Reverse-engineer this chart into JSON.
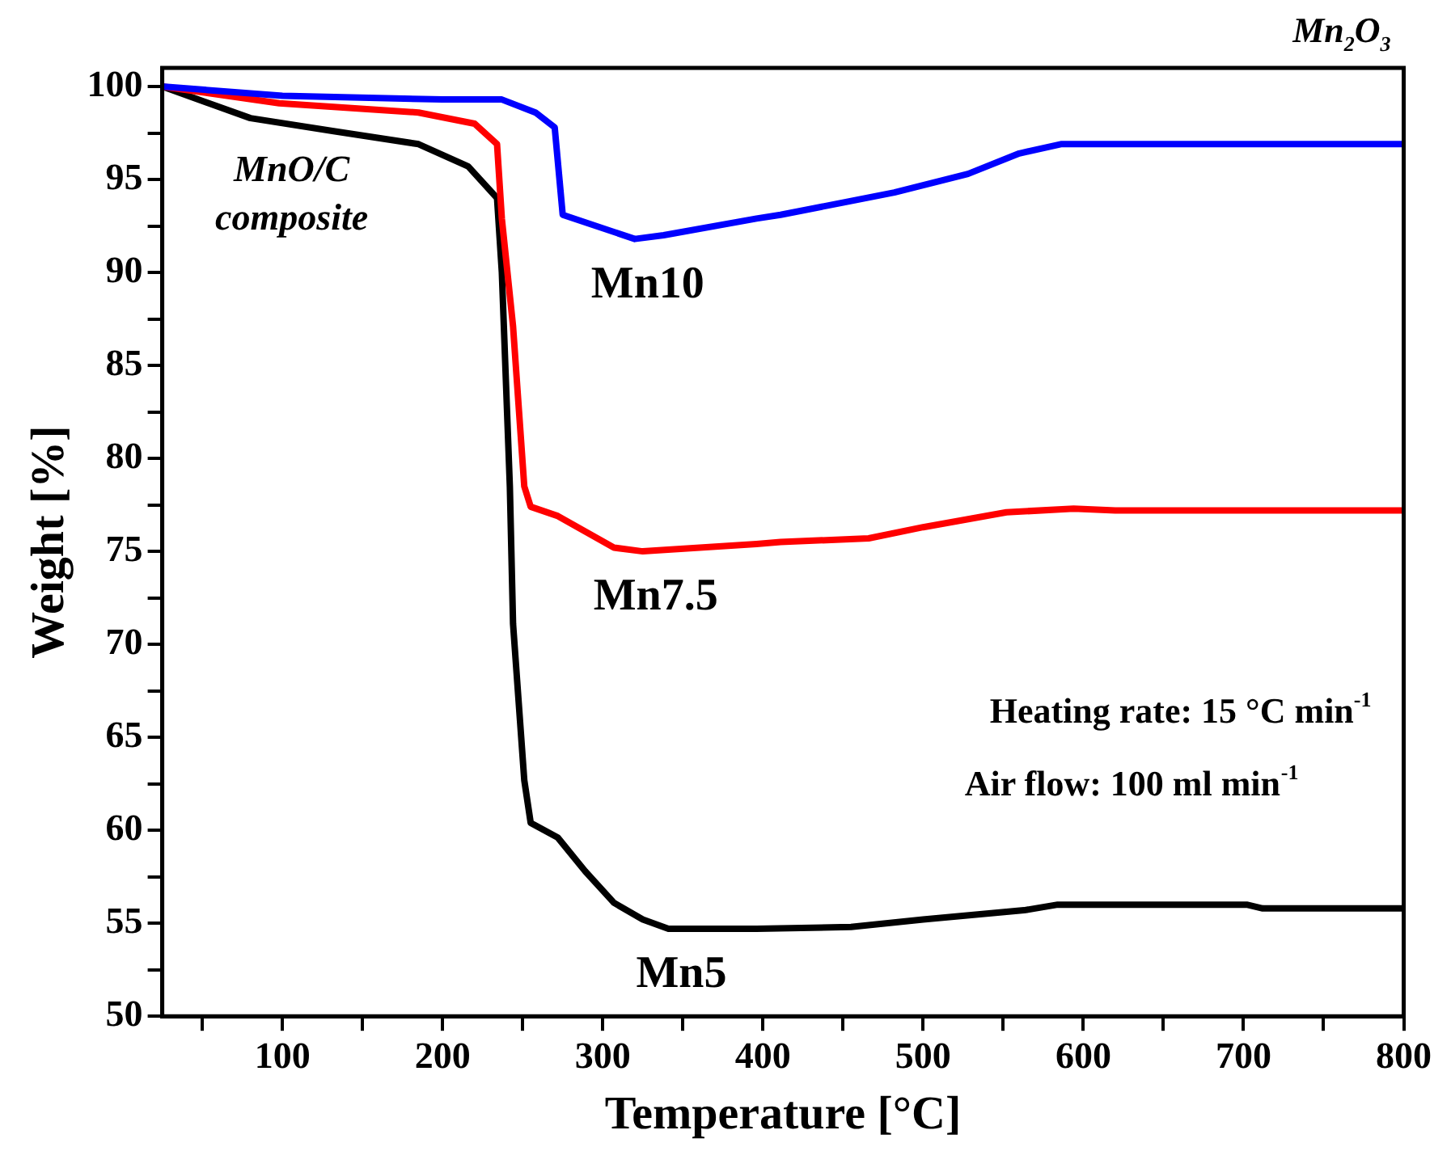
{
  "chart_data": {
    "type": "line",
    "xlabel": "Temperature [°C]",
    "ylabel": "Weight [%]",
    "xlim": [
      25,
      800
    ],
    "ylim": [
      50,
      101
    ],
    "xticks": [
      {
        "value": 50,
        "label": null
      },
      100,
      {
        "value": 150,
        "label": null
      },
      200,
      {
        "value": 250,
        "label": null
      },
      300,
      {
        "value": 350,
        "label": null
      },
      400,
      {
        "value": 450,
        "label": null
      },
      500,
      {
        "value": 550,
        "label": null
      },
      600,
      {
        "value": 650,
        "label": null
      },
      700,
      {
        "value": 750,
        "label": null
      },
      800
    ],
    "yticks": [
      50,
      {
        "value": 52.5,
        "label": null
      },
      55,
      {
        "value": 57.5,
        "label": null
      },
      60,
      {
        "value": 62.5,
        "label": null
      },
      65,
      {
        "value": 67.5,
        "label": null
      },
      70,
      {
        "value": 72.5,
        "label": null
      },
      75,
      {
        "value": 77.5,
        "label": null
      },
      80,
      {
        "value": 82.5,
        "label": null
      },
      85,
      {
        "value": 87.5,
        "label": null
      },
      90,
      {
        "value": 92.5,
        "label": null
      },
      95,
      {
        "value": 97.5,
        "label": null
      },
      100
    ],
    "grid": false,
    "legend": false,
    "marker": "none",
    "line_style": "solid",
    "series": [
      {
        "name": "Mn10",
        "color": "#0000ff",
        "x": [
          25,
          100,
          200,
          237,
          258,
          270,
          275,
          320,
          338,
          396,
          411,
          482,
          528,
          560,
          586,
          700,
          800
        ],
        "values": [
          100,
          99.5,
          99.3,
          99.3,
          98.6,
          97.8,
          93.1,
          91.8,
          92.0,
          92.9,
          93.1,
          94.3,
          95.3,
          96.4,
          96.9,
          96.9,
          96.9
        ]
      },
      {
        "name": "Mn7.5",
        "color": "#ff0000",
        "x": [
          25,
          98,
          185,
          220,
          234,
          237,
          244,
          251,
          255,
          272,
          307,
          325,
          396,
          411,
          466,
          500,
          552,
          594,
          620,
          700,
          800
        ],
        "values": [
          100,
          99.1,
          98.6,
          98.0,
          96.9,
          92.9,
          87.1,
          78.5,
          77.4,
          76.9,
          75.2,
          75.0,
          75.4,
          75.5,
          75.7,
          76.3,
          77.1,
          77.3,
          77.2,
          77.2,
          77.2
        ]
      },
      {
        "name": "Mn5",
        "color": "#000000",
        "x": [
          25,
          80,
          132,
          185,
          216,
          234,
          237,
          242,
          244,
          251,
          255,
          272,
          289,
          307,
          325,
          341,
          396,
          455,
          500,
          563,
          584,
          702,
          712,
          800
        ],
        "values": [
          100,
          98.3,
          97.6,
          96.9,
          95.7,
          94.0,
          90.0,
          78.5,
          71.1,
          62.7,
          60.4,
          59.6,
          57.8,
          56.1,
          55.2,
          54.7,
          54.7,
          54.8,
          55.2,
          55.7,
          56.0,
          56.0,
          55.8,
          55.8
        ]
      }
    ],
    "annotations": [
      "MnO/C composite",
      "Mn$_{2}$O$_{3}$",
      "Heating rate: 15 °C min$^{-1}$",
      "Air flow: 100 ml min$^{-1}$"
    ]
  }
}
